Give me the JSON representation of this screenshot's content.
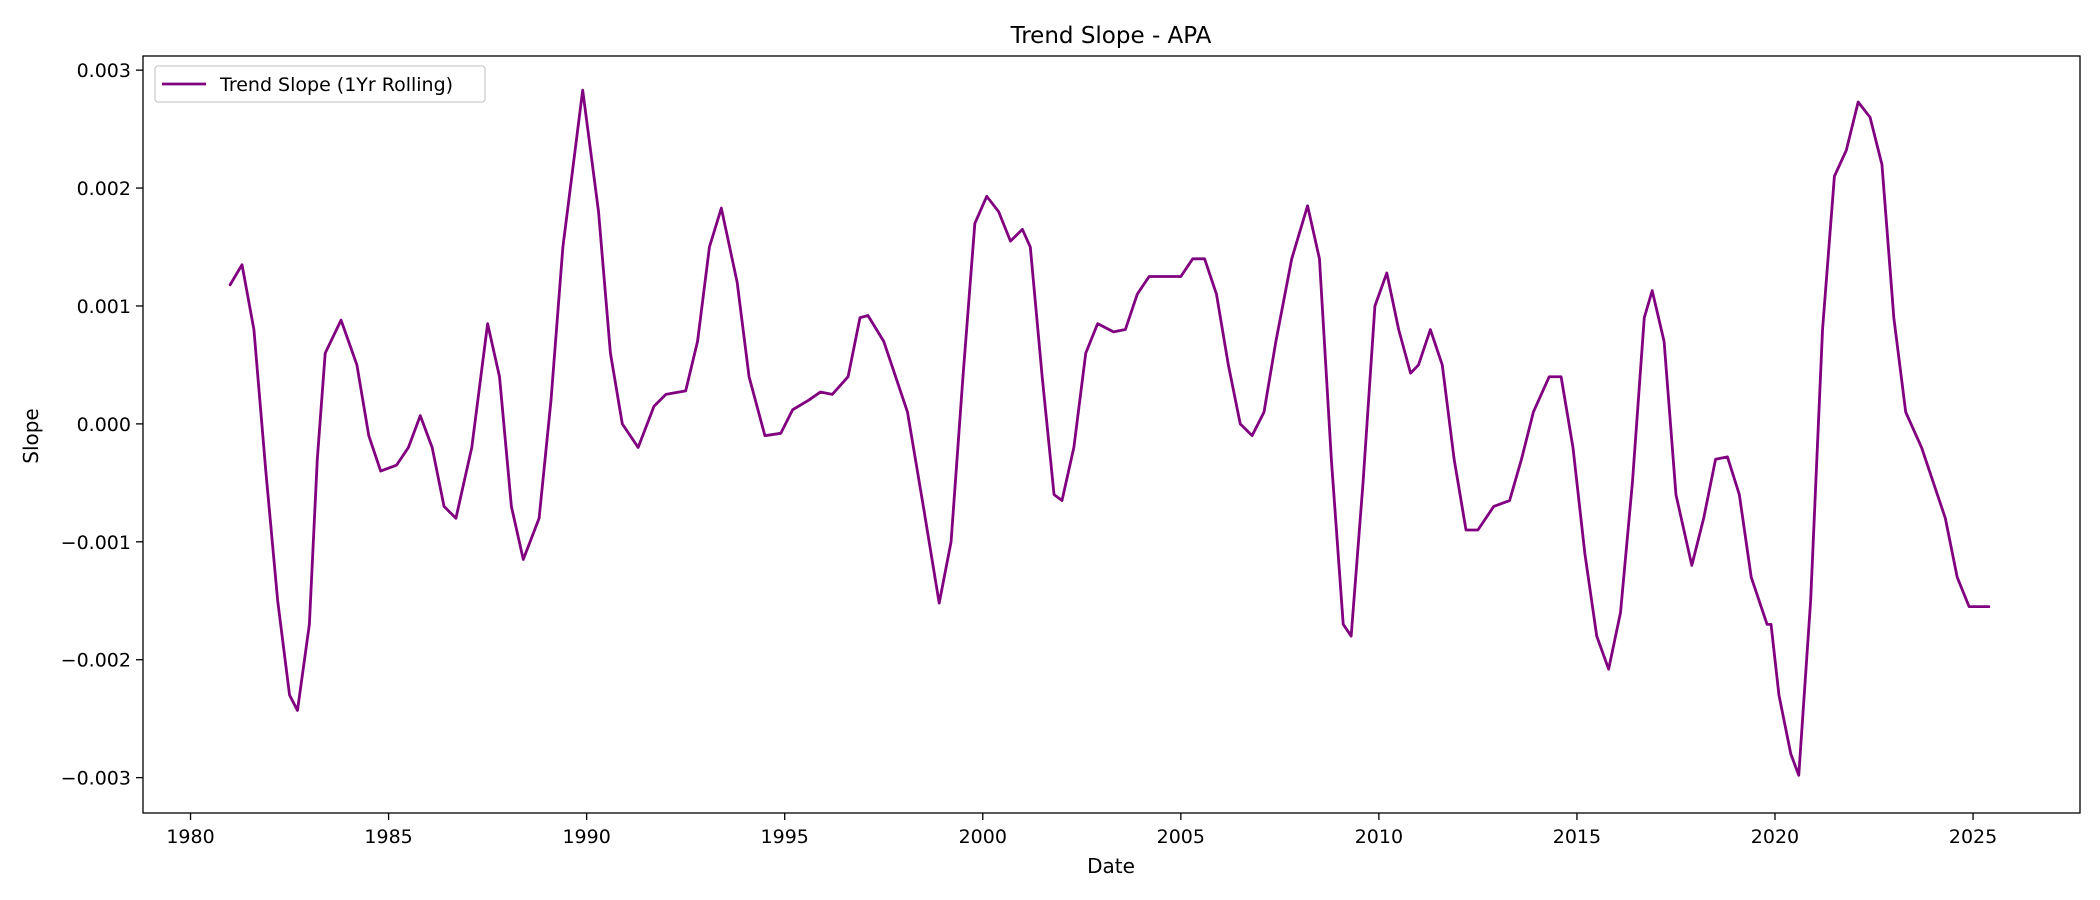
{
  "chart_data": {
    "type": "line",
    "title": "Trend Slope - APA",
    "xlabel": "Date",
    "ylabel": "Slope",
    "xlim": [
      1978.8,
      2027.7
    ],
    "ylim": [
      -0.0033,
      0.00312
    ],
    "xticks": [
      1980,
      1985,
      1990,
      1995,
      2000,
      2005,
      2010,
      2015,
      2020,
      2025
    ],
    "yticks": [
      -0.003,
      -0.002,
      -0.001,
      0.0,
      0.001,
      0.002,
      0.003
    ],
    "ytick_labels": [
      "−0.003",
      "−0.002",
      "−0.001",
      "0.000",
      "0.001",
      "0.002",
      "0.003"
    ],
    "grid": false,
    "legend": {
      "placement": "top-left"
    },
    "series": [
      {
        "name": "Trend Slope (1Yr Rolling)",
        "color": "#800080",
        "points": [
          [
            1981.0,
            0.00118
          ],
          [
            1981.3,
            0.00135
          ],
          [
            1981.6,
            0.0008
          ],
          [
            1981.9,
            -0.0004
          ],
          [
            1982.2,
            -0.0015
          ],
          [
            1982.5,
            -0.0023
          ],
          [
            1982.7,
            -0.00243
          ],
          [
            1983.0,
            -0.0017
          ],
          [
            1983.2,
            -0.0003
          ],
          [
            1983.4,
            0.0006
          ],
          [
            1983.8,
            0.00088
          ],
          [
            1984.2,
            0.0005
          ],
          [
            1984.5,
            -0.0001
          ],
          [
            1984.8,
            -0.0004
          ],
          [
            1985.2,
            -0.00035
          ],
          [
            1985.5,
            -0.0002
          ],
          [
            1985.8,
            7e-05
          ],
          [
            1986.1,
            -0.0002
          ],
          [
            1986.4,
            -0.0007
          ],
          [
            1986.7,
            -0.0008
          ],
          [
            1987.1,
            -0.0002
          ],
          [
            1987.5,
            0.00085
          ],
          [
            1987.8,
            0.0004
          ],
          [
            1988.1,
            -0.0007
          ],
          [
            1988.4,
            -0.00115
          ],
          [
            1988.8,
            -0.0008
          ],
          [
            1989.1,
            0.0002
          ],
          [
            1989.4,
            0.0015
          ],
          [
            1989.9,
            0.00283
          ],
          [
            1990.3,
            0.0018
          ],
          [
            1990.6,
            0.0006
          ],
          [
            1990.9,
            0.0
          ],
          [
            1991.3,
            -0.0002
          ],
          [
            1991.7,
            0.00015
          ],
          [
            1992.0,
            0.00025
          ],
          [
            1992.5,
            0.00028
          ],
          [
            1992.8,
            0.0007
          ],
          [
            1993.1,
            0.0015
          ],
          [
            1993.4,
            0.00183
          ],
          [
            1993.8,
            0.0012
          ],
          [
            1994.1,
            0.0004
          ],
          [
            1994.5,
            -0.0001
          ],
          [
            1994.9,
            -8e-05
          ],
          [
            1995.2,
            0.00012
          ],
          [
            1995.6,
            0.0002
          ],
          [
            1995.9,
            0.00027
          ],
          [
            1996.2,
            0.00025
          ],
          [
            1996.6,
            0.0004
          ],
          [
            1996.9,
            0.0009
          ],
          [
            1997.1,
            0.00092
          ],
          [
            1997.5,
            0.0007
          ],
          [
            1997.8,
            0.0004
          ],
          [
            1998.1,
            0.0001
          ],
          [
            1998.5,
            -0.0007
          ],
          [
            1998.9,
            -0.00152
          ],
          [
            1999.2,
            -0.001
          ],
          [
            1999.5,
            0.0004
          ],
          [
            1999.8,
            0.0017
          ],
          [
            2000.1,
            0.00193
          ],
          [
            2000.4,
            0.0018
          ],
          [
            2000.7,
            0.00155
          ],
          [
            2001.0,
            0.00165
          ],
          [
            2001.2,
            0.0015
          ],
          [
            2001.5,
            0.0004
          ],
          [
            2001.8,
            -0.0006
          ],
          [
            2002.0,
            -0.00065
          ],
          [
            2002.3,
            -0.0002
          ],
          [
            2002.6,
            0.0006
          ],
          [
            2002.9,
            0.00085
          ],
          [
            2003.3,
            0.00078
          ],
          [
            2003.6,
            0.0008
          ],
          [
            2003.9,
            0.0011
          ],
          [
            2004.2,
            0.00125
          ],
          [
            2004.6,
            0.00125
          ],
          [
            2005.0,
            0.00125
          ],
          [
            2005.3,
            0.0014
          ],
          [
            2005.6,
            0.0014
          ],
          [
            2005.9,
            0.0011
          ],
          [
            2006.2,
            0.0005
          ],
          [
            2006.5,
            0.0
          ],
          [
            2006.8,
            -0.0001
          ],
          [
            2007.1,
            0.0001
          ],
          [
            2007.4,
            0.0007
          ],
          [
            2007.8,
            0.0014
          ],
          [
            2008.2,
            0.00185
          ],
          [
            2008.5,
            0.0014
          ],
          [
            2008.8,
            -0.0003
          ],
          [
            2009.1,
            -0.0017
          ],
          [
            2009.3,
            -0.0018
          ],
          [
            2009.6,
            -0.0005
          ],
          [
            2009.9,
            0.001
          ],
          [
            2010.2,
            0.00128
          ],
          [
            2010.5,
            0.0008
          ],
          [
            2010.8,
            0.00043
          ],
          [
            2011.0,
            0.0005
          ],
          [
            2011.3,
            0.0008
          ],
          [
            2011.6,
            0.0005
          ],
          [
            2011.9,
            -0.0003
          ],
          [
            2012.2,
            -0.0009
          ],
          [
            2012.5,
            -0.0009
          ],
          [
            2012.9,
            -0.0007
          ],
          [
            2013.3,
            -0.00065
          ],
          [
            2013.6,
            -0.0003
          ],
          [
            2013.9,
            0.0001
          ],
          [
            2014.3,
            0.0004
          ],
          [
            2014.6,
            0.0004
          ],
          [
            2014.9,
            -0.0002
          ],
          [
            2015.2,
            -0.0011
          ],
          [
            2015.5,
            -0.0018
          ],
          [
            2015.8,
            -0.00208
          ],
          [
            2016.1,
            -0.0016
          ],
          [
            2016.4,
            -0.0005
          ],
          [
            2016.7,
            0.0009
          ],
          [
            2016.9,
            0.00113
          ],
          [
            2017.2,
            0.0007
          ],
          [
            2017.5,
            -0.0006
          ],
          [
            2017.9,
            -0.0012
          ],
          [
            2018.2,
            -0.0008
          ],
          [
            2018.5,
            -0.0003
          ],
          [
            2018.8,
            -0.00028
          ],
          [
            2019.1,
            -0.0006
          ],
          [
            2019.4,
            -0.0013
          ],
          [
            2019.8,
            -0.0017
          ],
          [
            2019.9,
            -0.0017
          ],
          [
            2020.1,
            -0.0023
          ],
          [
            2020.4,
            -0.0028
          ],
          [
            2020.6,
            -0.00298
          ],
          [
            2020.9,
            -0.0015
          ],
          [
            2021.2,
            0.0008
          ],
          [
            2021.5,
            0.0021
          ],
          [
            2021.8,
            0.00232
          ],
          [
            2022.1,
            0.00273
          ],
          [
            2022.4,
            0.0026
          ],
          [
            2022.7,
            0.0022
          ],
          [
            2023.0,
            0.0009
          ],
          [
            2023.3,
            0.0001
          ],
          [
            2023.7,
            -0.0002
          ],
          [
            2024.0,
            -0.0005
          ],
          [
            2024.3,
            -0.0008
          ],
          [
            2024.6,
            -0.0013
          ],
          [
            2024.9,
            -0.00155
          ],
          [
            2025.2,
            -0.00155
          ],
          [
            2025.4,
            -0.00155
          ]
        ]
      }
    ]
  }
}
